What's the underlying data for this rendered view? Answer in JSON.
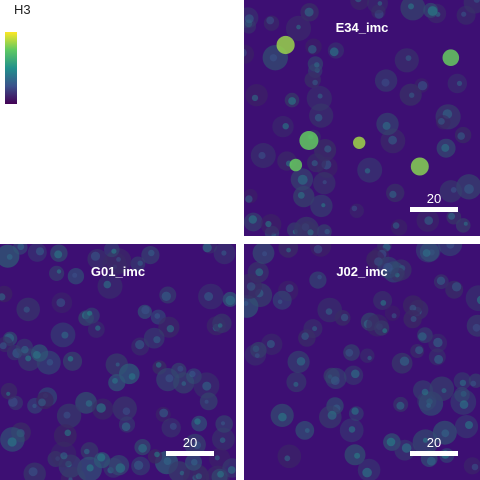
{
  "colorbar": {
    "title": "H3",
    "colors": [
      "#440154",
      "#3b528b",
      "#21918c",
      "#5ec962",
      "#fde725"
    ]
  },
  "panels": [
    {
      "label": "E34_imc",
      "scalebar_label": "20",
      "density": 0.9,
      "brightness": 0.45,
      "hot_spots": 6
    },
    {
      "label": "G01_imc",
      "scalebar_label": "20",
      "density": 1.3,
      "brightness": 0.7,
      "hot_spots": 0
    },
    {
      "label": "J02_imc",
      "scalebar_label": "20",
      "density": 1.1,
      "brightness": 0.55,
      "hot_spots": 0
    }
  ]
}
